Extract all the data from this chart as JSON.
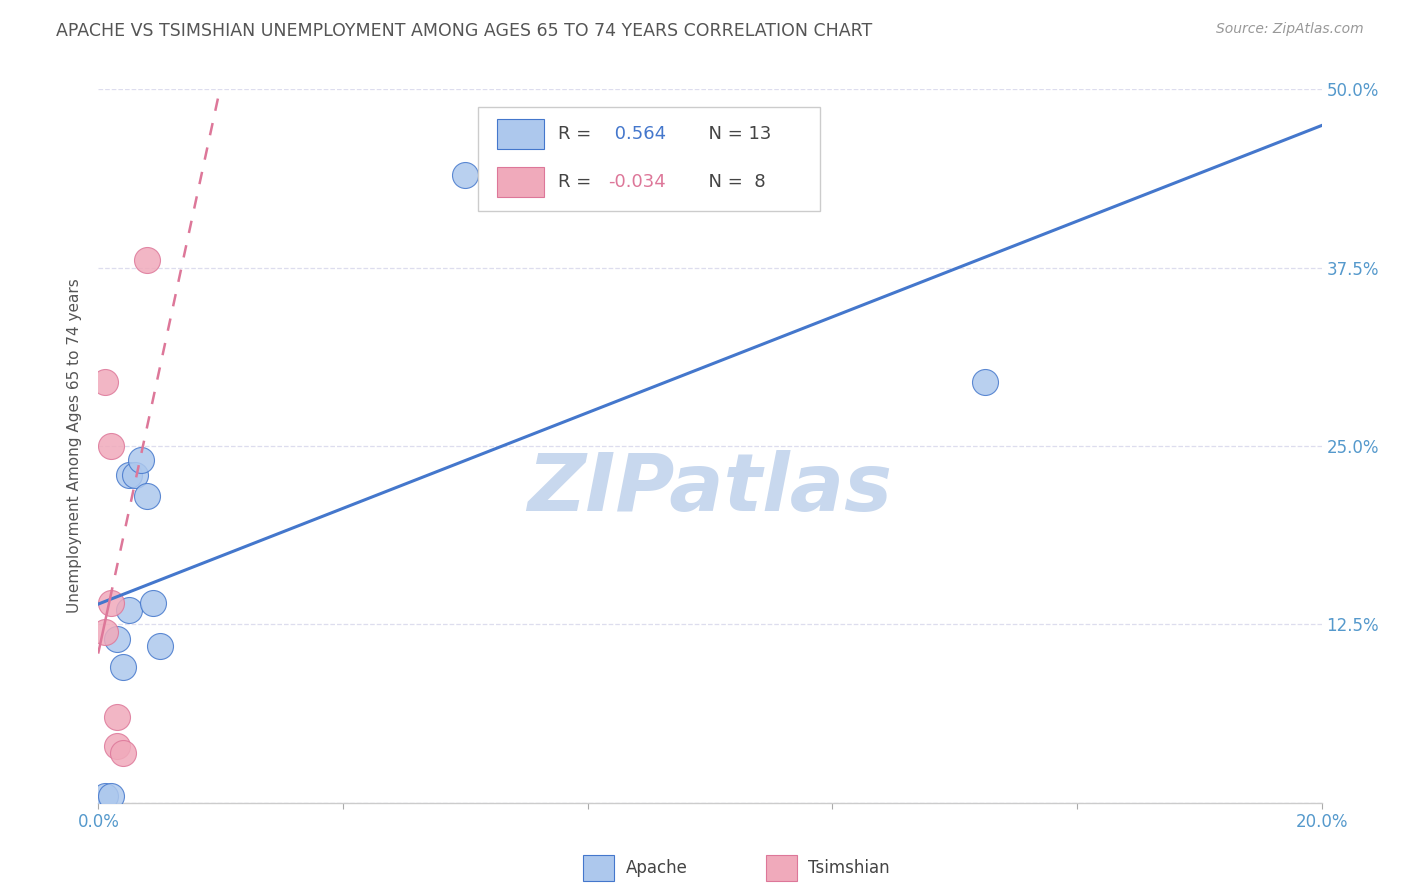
{
  "title": "APACHE VS TSIMSHIAN UNEMPLOYMENT AMONG AGES 65 TO 74 YEARS CORRELATION CHART",
  "source": "Source: ZipAtlas.com",
  "ylabel": "Unemployment Among Ages 65 to 74 years",
  "xlim": [
    0.0,
    0.2
  ],
  "ylim": [
    0.0,
    0.5
  ],
  "xticks": [
    0.0,
    0.04,
    0.08,
    0.12,
    0.16,
    0.2
  ],
  "yticks": [
    0.0,
    0.125,
    0.25,
    0.375,
    0.5
  ],
  "ytick_labels": [
    "",
    "12.5%",
    "25.0%",
    "37.5%",
    "50.0%"
  ],
  "xtick_labels": [
    "0.0%",
    "",
    "",
    "",
    "",
    "20.0%"
  ],
  "apache_points": [
    [
      0.001,
      0.005
    ],
    [
      0.002,
      0.005
    ],
    [
      0.003,
      0.115
    ],
    [
      0.004,
      0.095
    ],
    [
      0.005,
      0.135
    ],
    [
      0.005,
      0.23
    ],
    [
      0.006,
      0.23
    ],
    [
      0.007,
      0.24
    ],
    [
      0.008,
      0.215
    ],
    [
      0.009,
      0.14
    ],
    [
      0.01,
      0.11
    ],
    [
      0.06,
      0.44
    ],
    [
      0.145,
      0.295
    ]
  ],
  "tsimshian_points": [
    [
      0.001,
      0.12
    ],
    [
      0.001,
      0.295
    ],
    [
      0.002,
      0.25
    ],
    [
      0.002,
      0.14
    ],
    [
      0.003,
      0.06
    ],
    [
      0.003,
      0.04
    ],
    [
      0.004,
      0.035
    ],
    [
      0.008,
      0.38
    ]
  ],
  "apache_R": 0.564,
  "apache_N": 13,
  "tsimshian_R": -0.034,
  "tsimshian_N": 8,
  "apache_color": "#adc8ed",
  "tsimshian_color": "#f0aabb",
  "apache_line_color": "#4477cc",
  "tsimshian_line_color": "#dd7799",
  "background_color": "#ffffff",
  "grid_color": "#ddddee",
  "watermark": "ZIPatlas",
  "watermark_color": "#c8d8ee",
  "title_color": "#555555",
  "label_color": "#555555",
  "tick_color": "#5599cc"
}
